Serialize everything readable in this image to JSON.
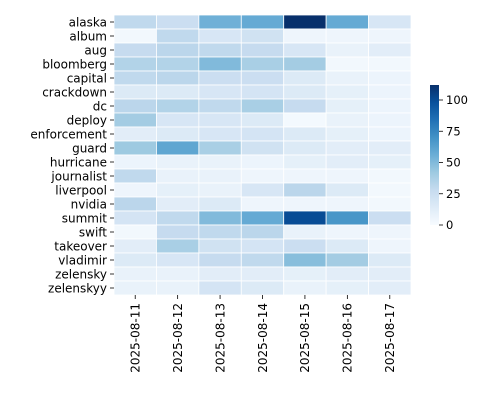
{
  "chart_data": {
    "type": "heatmap",
    "title": "",
    "xlabel": "",
    "ylabel": "",
    "x": [
      "2025-08-11",
      "2025-08-12",
      "2025-08-13",
      "2025-08-14",
      "2025-08-15",
      "2025-08-16",
      "2025-08-17"
    ],
    "y": [
      "alaska",
      "album",
      "aug",
      "bloomberg",
      "capital",
      "crackdown",
      "dc",
      "deploy",
      "enforcement",
      "guard",
      "hurricane",
      "journalist",
      "liverpool",
      "nvidia",
      "summit",
      "swift",
      "takeover",
      "vladimir",
      "zelensky",
      "zelenskyy"
    ],
    "values": [
      [
        30,
        25,
        55,
        58,
        112,
        58,
        18
      ],
      [
        3,
        30,
        18,
        22,
        5,
        5,
        5
      ],
      [
        28,
        32,
        30,
        28,
        18,
        8,
        12
      ],
      [
        35,
        35,
        50,
        38,
        40,
        3,
        3
      ],
      [
        30,
        32,
        25,
        25,
        15,
        8,
        6
      ],
      [
        15,
        15,
        18,
        20,
        15,
        10,
        6
      ],
      [
        32,
        35,
        30,
        38,
        28,
        10,
        6
      ],
      [
        40,
        18,
        18,
        15,
        2,
        8,
        6
      ],
      [
        12,
        15,
        18,
        20,
        15,
        10,
        6
      ],
      [
        42,
        60,
        38,
        22,
        15,
        12,
        12
      ],
      [
        6,
        8,
        8,
        6,
        10,
        12,
        10
      ],
      [
        30,
        8,
        8,
        5,
        5,
        5,
        3
      ],
      [
        5,
        10,
        8,
        18,
        32,
        15,
        3
      ],
      [
        32,
        12,
        15,
        5,
        5,
        5,
        3
      ],
      [
        20,
        30,
        50,
        58,
        100,
        68,
        25
      ],
      [
        3,
        28,
        30,
        32,
        8,
        5,
        5
      ],
      [
        12,
        38,
        22,
        20,
        25,
        15,
        5
      ],
      [
        15,
        18,
        28,
        30,
        48,
        40,
        15
      ],
      [
        8,
        8,
        12,
        12,
        10,
        12,
        12
      ],
      [
        8,
        8,
        20,
        15,
        8,
        10,
        12
      ]
    ],
    "colorbar": {
      "min": 0,
      "max": 112,
      "ticks": [
        0,
        25,
        50,
        75,
        100
      ],
      "colormap": "Blues",
      "stops": [
        "#f7fbff",
        "#deebf7",
        "#c6dbef",
        "#9ecae1",
        "#6baed6",
        "#4292c6",
        "#2171b5",
        "#08519c",
        "#08306b"
      ]
    },
    "grid_line_color": "#ffffff",
    "legend": "colorbar right"
  }
}
